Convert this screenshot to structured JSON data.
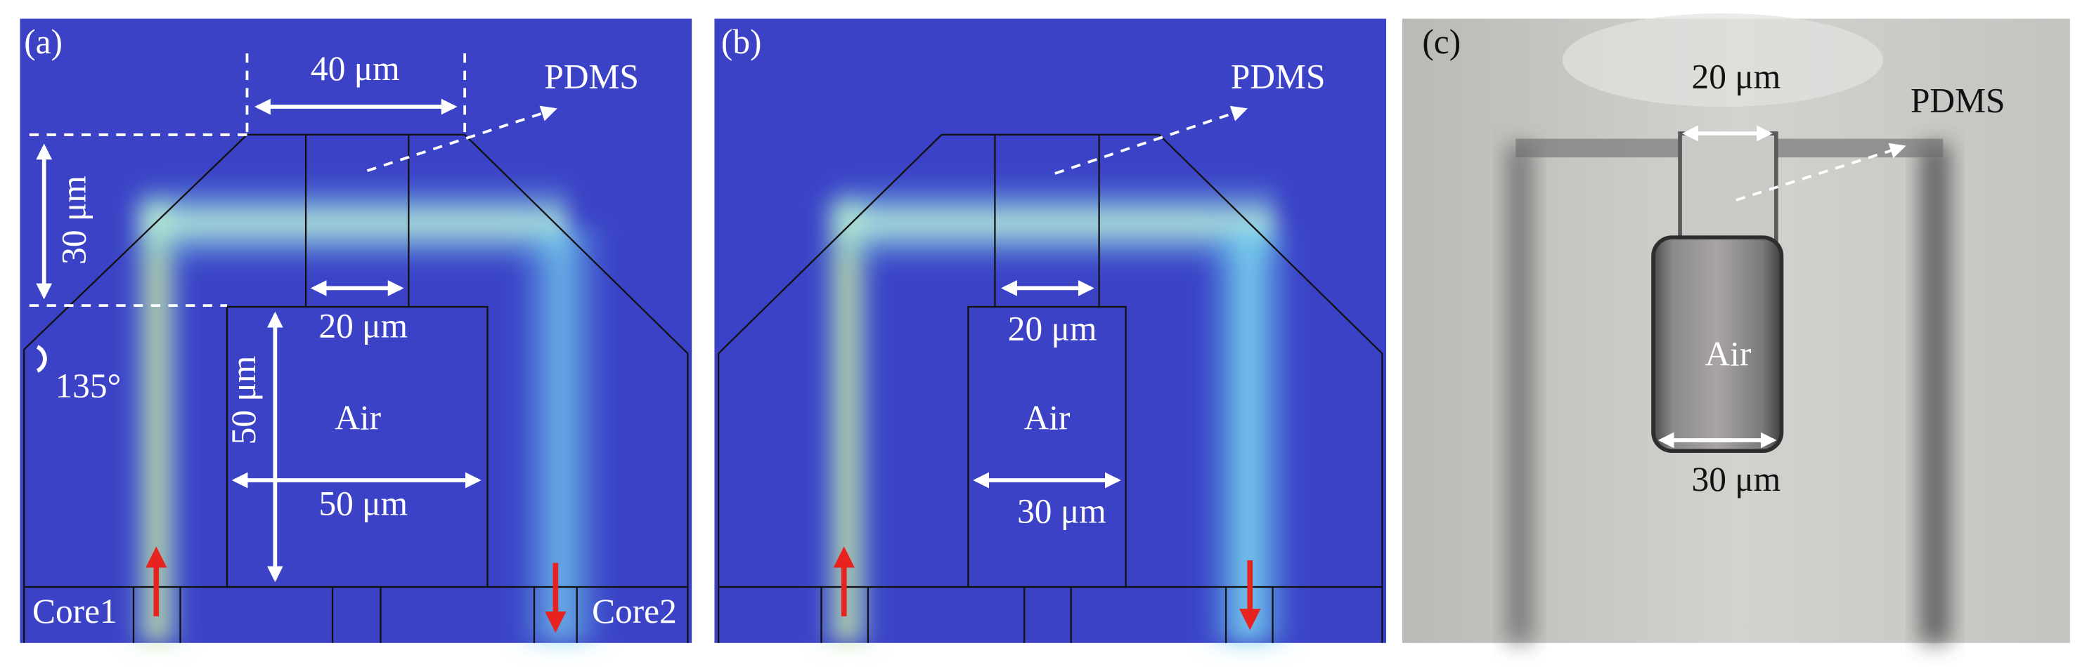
{
  "panels": [
    {
      "label": "(a)",
      "width_label": "40 μm",
      "material": "PDMS",
      "height_label": "30 μm",
      "gap_label": "20 μm",
      "angle": "135°",
      "air_height": "50 μm",
      "air": "Air",
      "air_width": "50 μm",
      "core1": "Core1",
      "core2": "Core2"
    },
    {
      "label": "(b)",
      "material": "PDMS",
      "gap_label": "20 μm",
      "air": "Air",
      "air_width": "30 μm"
    },
    {
      "label": "(c)",
      "gap_label": "20 μm",
      "material": "PDMS",
      "air": "Air",
      "air_width": "30 μm"
    }
  ]
}
